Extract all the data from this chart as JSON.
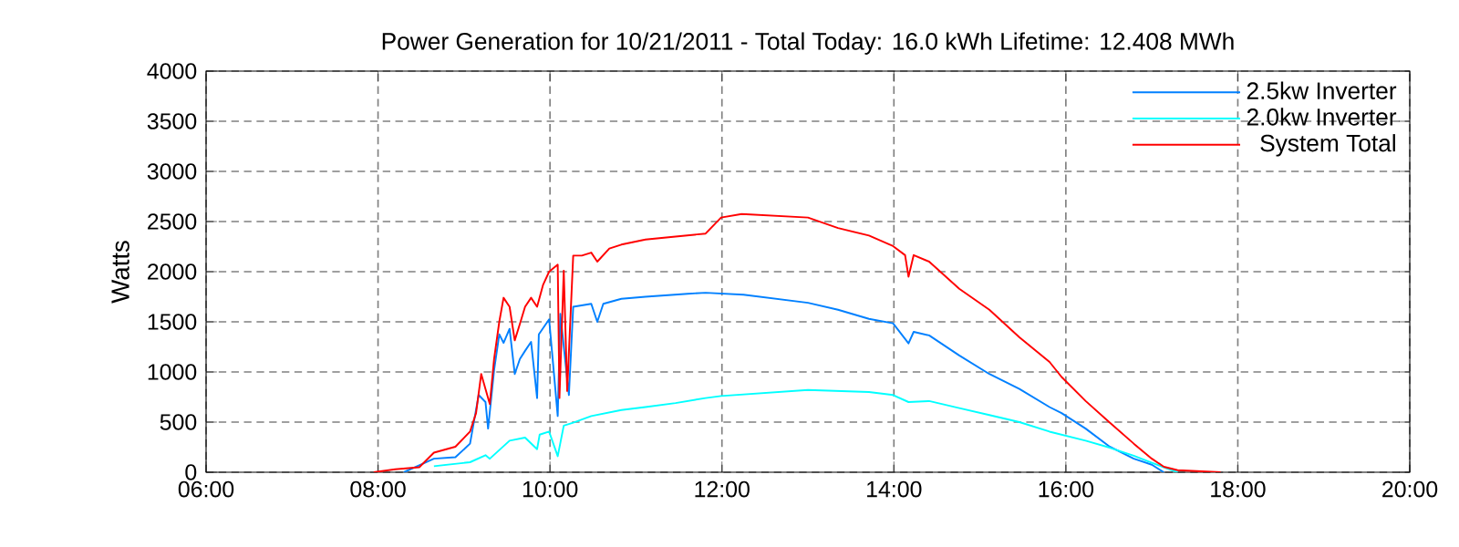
{
  "chart_data": {
    "type": "line",
    "title": "Power Generation for 10/21/2011 - Total Today: 16.0 kWh   Lifetime: 12.408 MWh",
    "ylabel": "Watts",
    "xlim": [
      6,
      20
    ],
    "ylim": [
      0,
      4000
    ],
    "xticks": [
      {
        "value": 6,
        "label": "06:00"
      },
      {
        "value": 8,
        "label": "08:00"
      },
      {
        "value": 10,
        "label": "10:00"
      },
      {
        "value": 12,
        "label": "12:00"
      },
      {
        "value": 14,
        "label": "14:00"
      },
      {
        "value": 16,
        "label": "16:00"
      },
      {
        "value": 18,
        "label": "18:00"
      },
      {
        "value": 20,
        "label": "20:00"
      }
    ],
    "yticks": [
      0,
      500,
      1000,
      1500,
      2000,
      2500,
      3000,
      3500,
      4000
    ],
    "grid": true,
    "legend": "top right",
    "marker": "none",
    "line_style": "solid",
    "series": [
      {
        "name": "2.5kw Inverter",
        "color": "#0080ff",
        "x": [
          8.3,
          8.65,
          8.9,
          9.07,
          9.17,
          9.25,
          9.28,
          9.35,
          9.41,
          9.46,
          9.53,
          9.59,
          9.65,
          9.71,
          9.78,
          9.85,
          9.87,
          9.99,
          10.09,
          10.12,
          10.22,
          10.27,
          10.48,
          10.55,
          10.62,
          10.83,
          11.11,
          11.6,
          11.81,
          12.25,
          13.0,
          13.35,
          13.71,
          13.99,
          14.17,
          14.23,
          14.41,
          14.76,
          15.11,
          15.46,
          15.81,
          15.95,
          16.23,
          16.51,
          16.79,
          17.0,
          17.14
        ],
        "values": [
          0,
          135,
          150,
          285,
          770,
          700,
          435,
          1020,
          1375,
          1290,
          1430,
          980,
          1130,
          1210,
          1300,
          740,
          1375,
          1525,
          560,
          1580,
          770,
          1650,
          1680,
          1500,
          1680,
          1730,
          1750,
          1780,
          1790,
          1770,
          1690,
          1620,
          1530,
          1485,
          1285,
          1400,
          1365,
          1165,
          980,
          830,
          650,
          590,
          435,
          255,
          135,
          75,
          0
        ]
      },
      {
        "name": "2.0kw Inverter",
        "color": "#00ffff",
        "x": [
          8.65,
          9.07,
          9.25,
          9.3,
          9.53,
          9.71,
          9.85,
          9.88,
          9.99,
          10.09,
          10.16,
          10.27,
          10.48,
          10.83,
          11.11,
          11.46,
          11.81,
          11.99,
          13.0,
          13.71,
          13.99,
          14.17,
          14.41,
          14.76,
          15.11,
          15.46,
          15.81,
          16.23,
          16.51,
          16.79,
          17.0,
          17.14,
          17.3
        ],
        "values": [
          60,
          100,
          170,
          135,
          315,
          345,
          230,
          375,
          405,
          160,
          465,
          495,
          560,
          620,
          650,
          690,
          740,
          760,
          820,
          800,
          770,
          700,
          710,
          640,
          570,
          500,
          405,
          315,
          245,
          165,
          95,
          50,
          0
        ]
      },
      {
        "name": "System Total",
        "color": "#ff0000",
        "x": [
          7.95,
          8.2,
          8.48,
          8.65,
          8.9,
          9.07,
          9.14,
          9.2,
          9.25,
          9.3,
          9.35,
          9.41,
          9.46,
          9.53,
          9.59,
          9.65,
          9.71,
          9.78,
          9.85,
          9.92,
          9.99,
          10.09,
          10.11,
          10.16,
          10.2,
          10.27,
          10.37,
          10.48,
          10.55,
          10.69,
          10.83,
          11.11,
          11.46,
          11.81,
          11.99,
          12.23,
          13.0,
          13.35,
          13.71,
          13.99,
          14.13,
          14.17,
          14.23,
          14.41,
          14.76,
          15.11,
          15.46,
          15.81,
          15.95,
          16.23,
          16.51,
          16.79,
          17.0,
          17.14,
          17.3,
          17.8
        ],
        "values": [
          0,
          30,
          50,
          195,
          255,
          405,
          590,
          980,
          830,
          680,
          1130,
          1500,
          1740,
          1650,
          1315,
          1480,
          1650,
          1740,
          1650,
          1870,
          2000,
          2070,
          740,
          2010,
          810,
          2160,
          2160,
          2190,
          2100,
          2230,
          2270,
          2320,
          2350,
          2380,
          2540,
          2575,
          2540,
          2435,
          2360,
          2255,
          2165,
          1950,
          2165,
          2100,
          1830,
          1620,
          1345,
          1100,
          950,
          710,
          495,
          285,
          135,
          55,
          20,
          0
        ]
      }
    ]
  }
}
